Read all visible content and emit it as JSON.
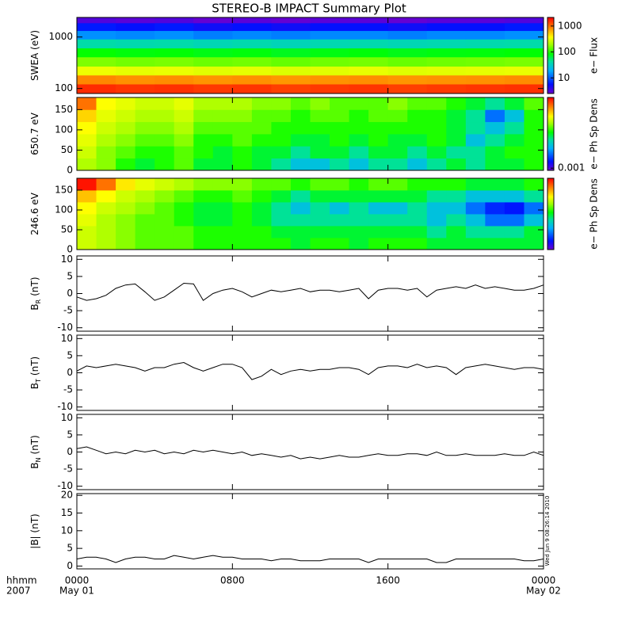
{
  "title": "STEREO-B IMPACT Summary Plot",
  "side_note": "Wed Jun 9 08:26:14 2010",
  "x_axis": {
    "xlim": [
      0,
      24
    ],
    "xticks": [
      {
        "value": 0,
        "label": "0000"
      },
      {
        "value": 8,
        "label": "0800"
      },
      {
        "value": 16,
        "label": "1600"
      },
      {
        "value": 24,
        "label": "0000"
      }
    ],
    "dates": [
      {
        "value": 0,
        "label": "May 01"
      },
      {
        "value": 24,
        "label": "May 02"
      }
    ],
    "label": "hhmm",
    "year": "2007"
  },
  "chart_data": [
    {
      "type": "heatmap",
      "ylabel": "SWEA (eV)",
      "ylog": true,
      "ylim": [
        80,
        2400
      ],
      "yticks": [
        100,
        1000
      ],
      "xbins": [
        0,
        2,
        4,
        6,
        8,
        10,
        12,
        14,
        16,
        18,
        20,
        22,
        24
      ],
      "ybins": [
        80,
        122,
        182,
        270,
        410,
        610,
        910,
        1330,
        1880,
        2400
      ],
      "values": [
        [
          1600,
          1500,
          1550,
          1450,
          1500,
          1400,
          1450,
          1500,
          1400,
          1450,
          1500,
          1550
        ],
        [
          850,
          800,
          820,
          780,
          800,
          760,
          790,
          810,
          770,
          790,
          800,
          830
        ],
        [
          330,
          310,
          320,
          300,
          310,
          290,
          300,
          315,
          295,
          305,
          310,
          320
        ],
        [
          160,
          150,
          155,
          145,
          150,
          140,
          148,
          152,
          142,
          147,
          150,
          156
        ],
        [
          85,
          80,
          82,
          77,
          80,
          74,
          78,
          81,
          76,
          79,
          80,
          83
        ],
        [
          40,
          38,
          39,
          36,
          38,
          35,
          37,
          38,
          36,
          37,
          38,
          39
        ],
        [
          15,
          14,
          15,
          13,
          14,
          13,
          14,
          14,
          13,
          14,
          14,
          15
        ],
        [
          6,
          5.5,
          6,
          5,
          5.5,
          5,
          5.5,
          5.5,
          5,
          5.5,
          5.5,
          6
        ],
        [
          3,
          2.8,
          3,
          2.6,
          2.8,
          2.6,
          2.8,
          2.8,
          2.6,
          2.8,
          2.8,
          3
        ]
      ],
      "colorbar": {
        "clim": [
          2.5,
          2150
        ],
        "cticks": [
          10,
          100,
          1000
        ],
        "label": "e− Flux"
      }
    },
    {
      "type": "heatmap",
      "ylabel": "650.7 eV",
      "ylim": [
        0,
        180
      ],
      "yticks": [
        0,
        50,
        100,
        150
      ],
      "xbins": [
        0,
        1,
        2,
        3,
        4,
        5,
        6,
        7,
        8,
        9,
        10,
        11,
        12,
        13,
        14,
        15,
        16,
        17,
        18,
        19,
        20,
        21,
        22,
        23,
        24
      ],
      "ybins": [
        0,
        30,
        60,
        90,
        120,
        150,
        180
      ],
      "values": [
        [
          0.009,
          0.008,
          0.006,
          0.005,
          0.006,
          0.007,
          0.005,
          0.005,
          0.006,
          0.005,
          0.004,
          0.003,
          0.003,
          0.004,
          0.003,
          0.004,
          0.004,
          0.003,
          0.004,
          0.005,
          0.004,
          0.005,
          0.005,
          0.006
        ],
        [
          0.01,
          0.008,
          0.007,
          0.006,
          0.006,
          0.007,
          0.006,
          0.005,
          0.006,
          0.005,
          0.005,
          0.004,
          0.005,
          0.005,
          0.004,
          0.005,
          0.005,
          0.004,
          0.005,
          0.004,
          0.004,
          0.005,
          0.006,
          0.006
        ],
        [
          0.011,
          0.009,
          0.008,
          0.007,
          0.007,
          0.008,
          0.006,
          0.006,
          0.007,
          0.006,
          0.006,
          0.005,
          0.005,
          0.006,
          0.005,
          0.006,
          0.005,
          0.005,
          0.006,
          0.005,
          0.003,
          0.004,
          0.005,
          0.006
        ],
        [
          0.012,
          0.01,
          0.009,
          0.008,
          0.008,
          0.009,
          0.007,
          0.007,
          0.007,
          0.007,
          0.006,
          0.006,
          0.006,
          0.006,
          0.006,
          0.006,
          0.006,
          0.006,
          0.006,
          0.005,
          0.004,
          0.003,
          0.004,
          0.006
        ],
        [
          0.014,
          0.011,
          0.01,
          0.009,
          0.009,
          0.01,
          0.008,
          0.008,
          0.008,
          0.007,
          0.007,
          0.006,
          0.007,
          0.007,
          0.006,
          0.007,
          0.007,
          0.006,
          0.006,
          0.005,
          0.004,
          0.002,
          0.003,
          0.006
        ],
        [
          0.02,
          0.012,
          0.011,
          0.01,
          0.01,
          0.011,
          0.009,
          0.009,
          0.009,
          0.008,
          0.008,
          0.007,
          0.008,
          0.007,
          0.007,
          0.007,
          0.008,
          0.007,
          0.007,
          0.006,
          0.005,
          0.004,
          0.005,
          0.007
        ]
      ],
      "colorbar": {
        "clim": [
          0.0009,
          0.03
        ],
        "cticks": [
          0.001
        ],
        "label": "e− Ph Sp Dens"
      }
    },
    {
      "type": "heatmap",
      "ylabel": "246.6 eV",
      "ylim": [
        0,
        180
      ],
      "yticks": [
        0,
        50,
        100,
        150
      ],
      "xbins": [
        0,
        1,
        2,
        3,
        4,
        5,
        6,
        7,
        8,
        9,
        10,
        11,
        12,
        13,
        14,
        15,
        16,
        17,
        18,
        19,
        20,
        21,
        22,
        23,
        24
      ],
      "ybins": [
        0,
        30,
        60,
        90,
        120,
        150,
        180
      ],
      "values": [
        [
          0.01,
          0.009,
          0.008,
          0.007,
          0.007,
          0.007,
          0.006,
          0.006,
          0.006,
          0.006,
          0.006,
          0.005,
          0.006,
          0.006,
          0.005,
          0.006,
          0.006,
          0.006,
          0.005,
          0.005,
          0.005,
          0.005,
          0.005,
          0.005
        ],
        [
          0.01,
          0.009,
          0.008,
          0.007,
          0.007,
          0.007,
          0.006,
          0.006,
          0.006,
          0.006,
          0.005,
          0.005,
          0.005,
          0.005,
          0.005,
          0.005,
          0.005,
          0.005,
          0.004,
          0.005,
          0.004,
          0.004,
          0.004,
          0.005
        ],
        [
          0.011,
          0.009,
          0.008,
          0.007,
          0.007,
          0.006,
          0.005,
          0.005,
          0.006,
          0.005,
          0.004,
          0.004,
          0.004,
          0.004,
          0.004,
          0.004,
          0.004,
          0.004,
          0.003,
          0.004,
          0.003,
          0.002,
          0.002,
          0.003
        ],
        [
          0.012,
          0.01,
          0.009,
          0.008,
          0.007,
          0.006,
          0.005,
          0.005,
          0.006,
          0.005,
          0.004,
          0.003,
          0.004,
          0.003,
          0.004,
          0.003,
          0.003,
          0.004,
          0.003,
          0.003,
          0.002,
          0.0015,
          0.0014,
          0.002
        ],
        [
          0.015,
          0.012,
          0.01,
          0.009,
          0.008,
          0.007,
          0.006,
          0.006,
          0.007,
          0.006,
          0.005,
          0.004,
          0.005,
          0.005,
          0.005,
          0.005,
          0.005,
          0.005,
          0.004,
          0.004,
          0.003,
          0.003,
          0.003,
          0.004
        ],
        [
          0.028,
          0.02,
          0.013,
          0.011,
          0.01,
          0.009,
          0.008,
          0.008,
          0.008,
          0.007,
          0.007,
          0.006,
          0.007,
          0.007,
          0.006,
          0.007,
          0.007,
          0.006,
          0.006,
          0.006,
          0.005,
          0.005,
          0.005,
          0.006
        ]
      ],
      "colorbar": {
        "clim": [
          0.0009,
          0.03
        ],
        "label": "e− Ph Sp Dens"
      }
    },
    {
      "type": "line",
      "ylabel": "B",
      "ylabel_sub": "R",
      "ylabel_unit": "(nT)",
      "ylim": [
        -11,
        11
      ],
      "yticks": [
        -10,
        -5,
        0,
        5,
        10
      ],
      "color": "#000000",
      "x": [
        0,
        0.5,
        1,
        1.5,
        2,
        2.5,
        3,
        3.5,
        4,
        4.5,
        5,
        5.5,
        6,
        6.5,
        7,
        7.5,
        8,
        8.5,
        9,
        9.5,
        10,
        10.5,
        11,
        11.5,
        12,
        12.5,
        13,
        13.5,
        14,
        14.5,
        15,
        15.5,
        16,
        16.5,
        17,
        17.5,
        18,
        18.5,
        19,
        19.5,
        20,
        20.5,
        21,
        21.5,
        22,
        22.5,
        23,
        23.5,
        24
      ],
      "values": [
        -1,
        -2,
        -1.5,
        -0.5,
        1.5,
        2.5,
        2.8,
        0.5,
        -2,
        -1,
        1,
        3,
        2.8,
        -2,
        0,
        1,
        1.5,
        0.5,
        -1,
        0,
        1,
        0.5,
        1,
        1.5,
        0.5,
        1,
        1,
        0.5,
        1,
        1.5,
        -1.5,
        1,
        1.5,
        1.5,
        1,
        1.5,
        -1,
        1,
        1.5,
        2,
        1.5,
        2.5,
        1.5,
        2,
        1.5,
        1,
        1,
        1.5,
        2.5
      ]
    },
    {
      "type": "line",
      "ylabel": "B",
      "ylabel_sub": "T",
      "ylabel_unit": "(nT)",
      "ylim": [
        -11,
        11
      ],
      "yticks": [
        -10,
        -5,
        0,
        5,
        10
      ],
      "color": "#000000",
      "x": [
        0,
        0.5,
        1,
        1.5,
        2,
        2.5,
        3,
        3.5,
        4,
        4.5,
        5,
        5.5,
        6,
        6.5,
        7,
        7.5,
        8,
        8.5,
        9,
        9.5,
        10,
        10.5,
        11,
        11.5,
        12,
        12.5,
        13,
        13.5,
        14,
        14.5,
        15,
        15.5,
        16,
        16.5,
        17,
        17.5,
        18,
        18.5,
        19,
        19.5,
        20,
        20.5,
        21,
        21.5,
        22,
        22.5,
        23,
        23.5,
        24
      ],
      "values": [
        0.5,
        2,
        1.5,
        2,
        2.5,
        2,
        1.5,
        0.5,
        1.5,
        1.5,
        2.5,
        3,
        1.5,
        0.5,
        1.5,
        2.5,
        2.5,
        1.5,
        -2,
        -1,
        1,
        -0.5,
        0.5,
        1,
        0.5,
        1,
        1,
        1.5,
        1.5,
        1,
        -0.5,
        1.5,
        2,
        2,
        1.5,
        2.5,
        1.5,
        2,
        1.5,
        -0.5,
        1.5,
        2,
        2.5,
        2,
        1.5,
        1,
        1.5,
        1.5,
        1
      ]
    },
    {
      "type": "line",
      "ylabel": "B",
      "ylabel_sub": "N",
      "ylabel_unit": "(nT)",
      "ylim": [
        -11,
        11
      ],
      "yticks": [
        -10,
        -5,
        0,
        5,
        10
      ],
      "color": "#000000",
      "x": [
        0,
        0.5,
        1,
        1.5,
        2,
        2.5,
        3,
        3.5,
        4,
        4.5,
        5,
        5.5,
        6,
        6.5,
        7,
        7.5,
        8,
        8.5,
        9,
        9.5,
        10,
        10.5,
        11,
        11.5,
        12,
        12.5,
        13,
        13.5,
        14,
        14.5,
        15,
        15.5,
        16,
        16.5,
        17,
        17.5,
        18,
        18.5,
        19,
        19.5,
        20,
        20.5,
        21,
        21.5,
        22,
        22.5,
        23,
        23.5,
        24
      ],
      "values": [
        1,
        1.5,
        0.5,
        -0.5,
        0,
        -0.5,
        0.5,
        0,
        0.5,
        -0.5,
        0,
        -0.5,
        0.5,
        0,
        0.5,
        0,
        -0.5,
        0,
        -1,
        -0.5,
        -1,
        -1.5,
        -1,
        -2,
        -1.5,
        -2,
        -1.5,
        -1,
        -1.5,
        -1.5,
        -1,
        -0.5,
        -1,
        -1,
        -0.5,
        -0.5,
        -1,
        0,
        -1,
        -1,
        -0.5,
        -1,
        -1,
        -1,
        -0.5,
        -1,
        -1,
        0,
        -1
      ]
    },
    {
      "type": "line",
      "ylabel": "|B| (nT)",
      "ylim": [
        -0.8,
        20.5
      ],
      "yticks": [
        0,
        5,
        10,
        15,
        20
      ],
      "color": "#000000",
      "x": [
        0,
        0.5,
        1,
        1.5,
        2,
        2.5,
        3,
        3.5,
        4,
        4.5,
        5,
        5.5,
        6,
        6.5,
        7,
        7.5,
        8,
        8.5,
        9,
        9.5,
        10,
        10.5,
        11,
        11.5,
        12,
        12.5,
        13,
        13.5,
        14,
        14.5,
        15,
        15.5,
        16,
        16.5,
        17,
        17.5,
        18,
        18.5,
        19,
        19.5,
        20,
        20.5,
        21,
        21.5,
        22,
        22.5,
        23,
        23.5,
        24
      ],
      "values": [
        2,
        2.5,
        2.5,
        2,
        1,
        2,
        2.5,
        2.5,
        2,
        2,
        3,
        2.5,
        2,
        2.5,
        3,
        2.5,
        2.5,
        2,
        2,
        2,
        1.5,
        2,
        2,
        1.5,
        1.5,
        1.5,
        2,
        2,
        2,
        2,
        1,
        2,
        2,
        2,
        2,
        2,
        2,
        1,
        1,
        2,
        2,
        2,
        2,
        2,
        2,
        2,
        1.5,
        1.5,
        2
      ]
    }
  ]
}
